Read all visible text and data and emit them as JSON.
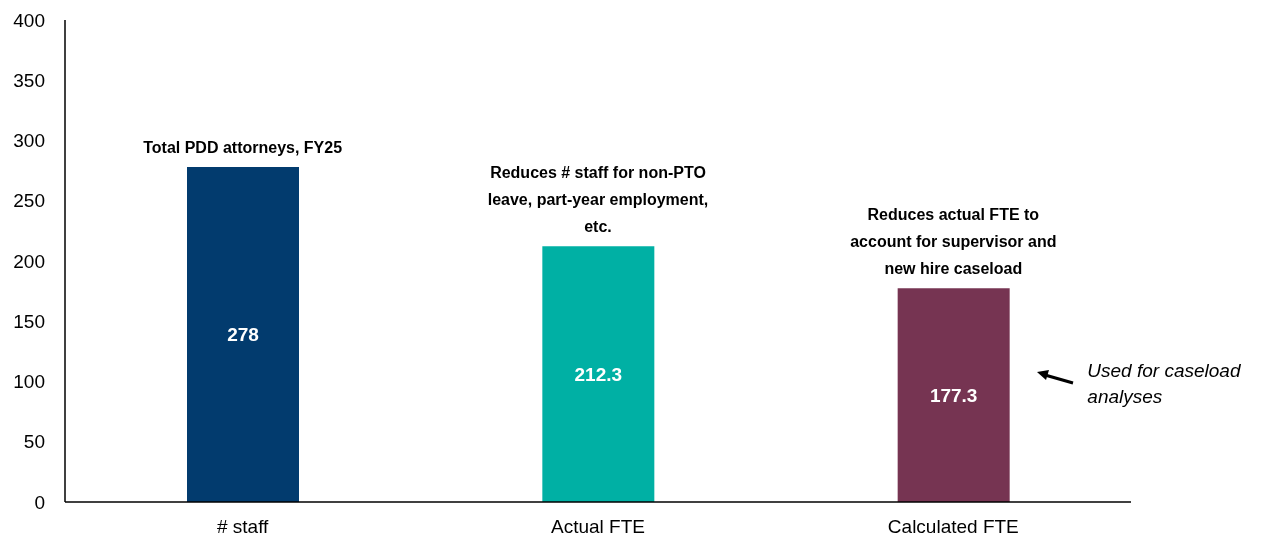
{
  "chart_data": {
    "type": "bar",
    "categories": [
      "# staff",
      "Actual FTE",
      "Calculated FTE"
    ],
    "values": [
      278,
      212.3,
      177.3
    ],
    "colors": [
      "#023b6e",
      "#00b0a4",
      "#763452"
    ],
    "ylim": [
      0,
      400
    ],
    "yticks": [
      0,
      50,
      100,
      150,
      200,
      250,
      300,
      350,
      400
    ],
    "data_labels": true,
    "annotations": [
      {
        "text": "Total PDD attorneys, FY25",
        "x": "# staff",
        "y": 278
      },
      {
        "text": "Reduces # staff for non-PTO leave, part-year employment, etc.",
        "x": "Actual FTE",
        "y": 212.3
      },
      {
        "text": "Reduces actual FTE to account for supervisor and new hire caseload",
        "x": "Calculated FTE",
        "y": 177.3
      },
      "Used for caseload analyses"
    ]
  }
}
